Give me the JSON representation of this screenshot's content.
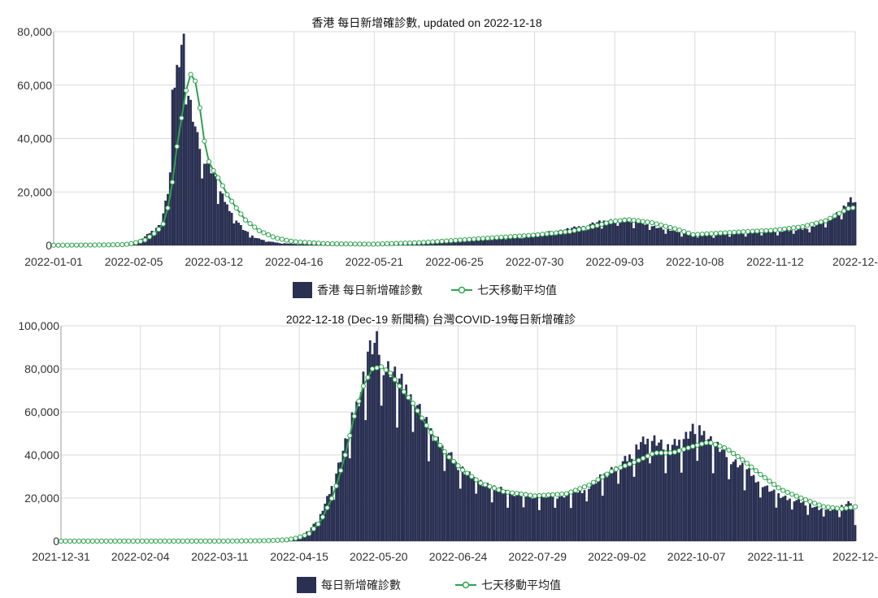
{
  "colors": {
    "bar": "#2a3052",
    "line": "#2ea44f",
    "point_fill": "#ffffff",
    "grid": "#dadada"
  },
  "chart_data": [
    {
      "type": "bar",
      "title": "香港 每日新增確診數, updated on 2022-12-18",
      "legend": {
        "position": "bottom",
        "bar_label": "香港 每日新增確診數",
        "line_label": "七天移動平均值"
      },
      "ylim": [
        0,
        80000
      ],
      "y_ticks": [
        "0",
        "20,000",
        "40,000",
        "60,000",
        "80,000"
      ],
      "x_start": "2022-01-01",
      "x_end": "2022-12-18",
      "x_ticks": [
        "2022-01-01",
        "2022-02-05",
        "2022-03-12",
        "2022-04-16",
        "2022-05-21",
        "2022-06-25",
        "2022-07-30",
        "2022-09-03",
        "2022-10-08",
        "2022-11-12",
        "2022-12-"
      ],
      "grid": true,
      "series": [
        {
          "name": "香港 每日新增確診數",
          "kind": "bar",
          "values_x": [
            "2022-01-01",
            "2022-01-20",
            "2022-02-01",
            "2022-02-05",
            "2022-02-08",
            "2022-02-11",
            "2022-02-14",
            "2022-02-17",
            "2022-02-20",
            "2022-02-22",
            "2022-02-24",
            "2022-02-26",
            "2022-02-28",
            "2022-03-01",
            "2022-03-03",
            "2022-03-05",
            "2022-03-07",
            "2022-03-09",
            "2022-03-12",
            "2022-03-15",
            "2022-03-18",
            "2022-03-21",
            "2022-03-25",
            "2022-03-30",
            "2022-04-05",
            "2022-04-10",
            "2022-04-16",
            "2022-04-25",
            "2022-05-10",
            "2022-05-21",
            "2022-06-05",
            "2022-06-20",
            "2022-06-25",
            "2022-07-10",
            "2022-07-25",
            "2022-07-30",
            "2022-08-10",
            "2022-08-20",
            "2022-08-28",
            "2022-09-03",
            "2022-09-08",
            "2022-09-15",
            "2022-09-25",
            "2022-10-08",
            "2022-10-20",
            "2022-11-01",
            "2022-11-12",
            "2022-11-25",
            "2022-12-05",
            "2022-12-10",
            "2022-12-14",
            "2022-12-16",
            "2022-12-18"
          ],
          "values_y": [
            20,
            100,
            200,
            700,
            2000,
            4000,
            6000,
            8000,
            20000,
            55000,
            66000,
            76000,
            77000,
            56000,
            48000,
            40000,
            34000,
            31000,
            27000,
            20000,
            15000,
            11000,
            6000,
            3000,
            1500,
            900,
            600,
            400,
            300,
            300,
            800,
            1600,
            2000,
            2800,
            3600,
            4200,
            5500,
            7200,
            8800,
            9600,
            9800,
            8500,
            6200,
            4000,
            4200,
            4800,
            5200,
            6000,
            8800,
            12000,
            15000,
            17000,
            15800
          ]
        },
        {
          "name": "七天移動平均值",
          "kind": "line",
          "values_x": [
            "2022-01-01",
            "2022-01-20",
            "2022-02-01",
            "2022-02-05",
            "2022-02-10",
            "2022-02-15",
            "2022-02-18",
            "2022-02-21",
            "2022-02-24",
            "2022-02-27",
            "2022-03-01",
            "2022-03-03",
            "2022-03-05",
            "2022-03-07",
            "2022-03-09",
            "2022-03-12",
            "2022-03-15",
            "2022-03-18",
            "2022-03-22",
            "2022-03-26",
            "2022-04-01",
            "2022-04-08",
            "2022-04-16",
            "2022-05-01",
            "2022-05-21",
            "2022-06-10",
            "2022-06-25",
            "2022-07-10",
            "2022-07-30",
            "2022-08-15",
            "2022-08-25",
            "2022-09-03",
            "2022-09-10",
            "2022-09-20",
            "2022-10-01",
            "2022-10-08",
            "2022-10-20",
            "2022-11-01",
            "2022-11-12",
            "2022-11-25",
            "2022-12-05",
            "2022-12-10",
            "2022-12-15",
            "2022-12-18"
          ],
          "values_y": [
            50,
            150,
            300,
            800,
            2000,
            5000,
            8000,
            17000,
            37000,
            53000,
            63000,
            65000,
            58000,
            45000,
            33000,
            28000,
            24000,
            19000,
            14000,
            9500,
            5500,
            2800,
            1400,
            600,
            450,
            1000,
            1800,
            2700,
            3800,
            5200,
            7000,
            9000,
            9600,
            8500,
            6000,
            4000,
            4600,
            5200,
            5600,
            7000,
            9200,
            11500,
            13800,
            14200
          ]
        }
      ]
    },
    {
      "type": "bar",
      "title": "2022-12-18 (Dec-19 新聞稿) 台灣COVID-19每日新增確診",
      "legend": {
        "position": "bottom",
        "bar_label": "每日新增確診數",
        "line_label": "七天移動平均值"
      },
      "ylim": [
        0,
        100000
      ],
      "y_ticks": [
        "0",
        "20,000",
        "40,000",
        "60,000",
        "80,000",
        "100,000"
      ],
      "x_start": "2021-12-31",
      "x_end": "2022-12-18",
      "x_ticks": [
        "2021-12-31",
        "2022-02-04",
        "2022-03-11",
        "2022-04-15",
        "2022-05-20",
        "2022-06-24",
        "2022-07-29",
        "2022-09-02",
        "2022-10-07",
        "2022-11-11",
        "2022-12-"
      ],
      "grid": true,
      "series": [
        {
          "name": "每日新增確診數",
          "kind": "bar",
          "values_x": [
            "2021-12-31",
            "2022-02-04",
            "2022-03-11",
            "2022-04-01",
            "2022-04-10",
            "2022-04-15",
            "2022-04-20",
            "2022-04-25",
            "2022-04-30",
            "2022-05-05",
            "2022-05-10",
            "2022-05-13",
            "2022-05-16",
            "2022-05-20",
            "2022-05-23",
            "2022-05-26",
            "2022-05-29",
            "2022-06-01",
            "2022-06-05",
            "2022-06-10",
            "2022-06-15",
            "2022-06-20",
            "2022-06-24",
            "2022-07-01",
            "2022-07-10",
            "2022-07-20",
            "2022-07-29",
            "2022-08-10",
            "2022-08-20",
            "2022-08-28",
            "2022-09-02",
            "2022-09-08",
            "2022-09-14",
            "2022-09-20",
            "2022-09-26",
            "2022-10-01",
            "2022-10-07",
            "2022-10-12",
            "2022-10-18",
            "2022-10-24",
            "2022-10-30",
            "2022-11-05",
            "2022-11-11",
            "2022-11-18",
            "2022-11-25",
            "2022-12-02",
            "2022-12-10",
            "2022-12-16",
            "2022-12-18"
          ],
          "values_y": [
            30,
            20,
            60,
            300,
            800,
            2000,
            5000,
            12000,
            25000,
            42000,
            60000,
            70000,
            88000,
            92000,
            82000,
            80000,
            76000,
            72000,
            68000,
            56000,
            48000,
            42000,
            36000,
            30000,
            25000,
            22000,
            21000,
            21000,
            24000,
            30000,
            34000,
            38000,
            46000,
            48000,
            43000,
            46000,
            52000,
            50000,
            44000,
            38000,
            34000,
            28000,
            23000,
            20000,
            18000,
            15000,
            15000,
            18000,
            11000
          ]
        },
        {
          "name": "七天移動平均值",
          "kind": "line",
          "values_x": [
            "2021-12-31",
            "2022-02-04",
            "2022-03-11",
            "2022-04-01",
            "2022-04-10",
            "2022-04-15",
            "2022-04-20",
            "2022-04-25",
            "2022-05-01",
            "2022-05-06",
            "2022-05-10",
            "2022-05-14",
            "2022-05-18",
            "2022-05-22",
            "2022-05-26",
            "2022-05-30",
            "2022-06-05",
            "2022-06-12",
            "2022-06-20",
            "2022-06-27",
            "2022-07-05",
            "2022-07-15",
            "2022-07-29",
            "2022-08-12",
            "2022-08-22",
            "2022-09-02",
            "2022-09-12",
            "2022-09-20",
            "2022-09-28",
            "2022-10-07",
            "2022-10-14",
            "2022-10-22",
            "2022-10-30",
            "2022-11-06",
            "2022-11-15",
            "2022-11-24",
            "2022-12-04",
            "2022-12-12",
            "2022-12-18"
          ],
          "values_y": [
            0,
            0,
            0,
            200,
            600,
            1500,
            3500,
            9000,
            22000,
            40000,
            58000,
            72000,
            80000,
            81000,
            78000,
            72000,
            64000,
            52000,
            40000,
            33000,
            27000,
            23000,
            21000,
            22000,
            26000,
            33000,
            37000,
            41000,
            41000,
            44000,
            46000,
            43000,
            37000,
            31000,
            24000,
            20000,
            16000,
            15000,
            16000
          ]
        }
      ]
    }
  ]
}
